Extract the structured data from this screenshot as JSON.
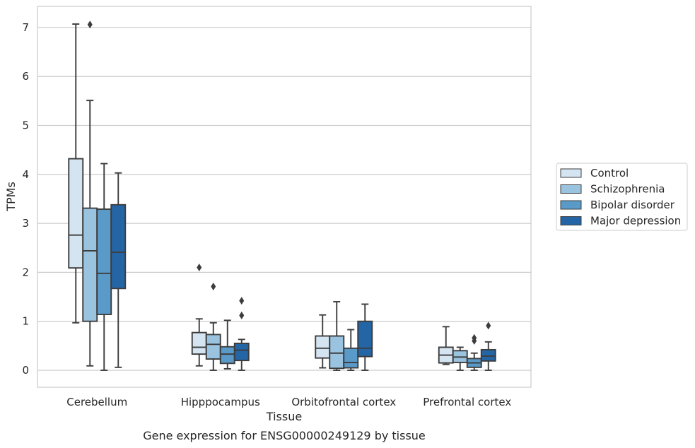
{
  "chart_data": {
    "type": "box",
    "xlabel": "Tissue",
    "ylabel": "TPMs",
    "caption": "Gene expression for ENSG00000249129 by tissue",
    "ylim": [
      -0.35,
      7.45
    ],
    "yticks": [
      0,
      1,
      2,
      3,
      4,
      5,
      6,
      7
    ],
    "grid": "horizontal",
    "legend_position": "right",
    "categories": [
      "Cerebellum",
      "Hipppocampus",
      "Orbitofrontal cortex",
      "Prefrontal cortex"
    ],
    "series": [
      {
        "name": "Control",
        "color": "#d5e4f1",
        "boxes": [
          {
            "q1": 2.09,
            "median": 2.76,
            "q3": 4.32,
            "whislo": 0.97,
            "whishi": 7.07,
            "fliers": []
          },
          {
            "q1": 0.33,
            "median": 0.47,
            "q3": 0.77,
            "whislo": 0.09,
            "whishi": 1.05,
            "fliers": [
              2.1
            ]
          },
          {
            "q1": 0.25,
            "median": 0.45,
            "q3": 0.7,
            "whislo": 0.05,
            "whishi": 1.13,
            "fliers": []
          },
          {
            "q1": 0.15,
            "median": 0.31,
            "q3": 0.47,
            "whislo": 0.12,
            "whishi": 0.89,
            "fliers": []
          }
        ]
      },
      {
        "name": "Schizophrenia",
        "color": "#9ac3df",
        "boxes": [
          {
            "q1": 1.0,
            "median": 2.44,
            "q3": 3.31,
            "whislo": 0.09,
            "whishi": 5.51,
            "fliers": [
              7.06
            ]
          },
          {
            "q1": 0.23,
            "median": 0.53,
            "q3": 0.73,
            "whislo": 0.0,
            "whishi": 0.97,
            "fliers": [
              1.71
            ]
          },
          {
            "q1": 0.04,
            "median": 0.35,
            "q3": 0.7,
            "whislo": 0.0,
            "whishi": 1.4,
            "fliers": []
          },
          {
            "q1": 0.16,
            "median": 0.27,
            "q3": 0.4,
            "whislo": 0.0,
            "whishi": 0.47,
            "fliers": []
          }
        ]
      },
      {
        "name": "Bipolar disorder",
        "color": "#5a9ac9",
        "boxes": [
          {
            "q1": 1.14,
            "median": 1.98,
            "q3": 3.29,
            "whislo": 0.0,
            "whishi": 4.22,
            "fliers": []
          },
          {
            "q1": 0.14,
            "median": 0.33,
            "q3": 0.48,
            "whislo": 0.03,
            "whishi": 1.02,
            "fliers": []
          },
          {
            "q1": 0.05,
            "median": 0.16,
            "q3": 0.45,
            "whislo": 0.0,
            "whishi": 0.83,
            "fliers": []
          },
          {
            "q1": 0.06,
            "median": 0.15,
            "q3": 0.24,
            "whislo": 0.0,
            "whishi": 0.35,
            "fliers": [
              0.6,
              0.66
            ]
          }
        ]
      },
      {
        "name": "Major depression",
        "color": "#2465a6",
        "boxes": [
          {
            "q1": 1.67,
            "median": 2.41,
            "q3": 3.38,
            "whislo": 0.06,
            "whishi": 4.03,
            "fliers": []
          },
          {
            "q1": 0.2,
            "median": 0.41,
            "q3": 0.55,
            "whislo": 0.0,
            "whishi": 0.63,
            "fliers": [
              1.12,
              1.42
            ]
          },
          {
            "q1": 0.28,
            "median": 0.45,
            "q3": 1.0,
            "whislo": 0.0,
            "whishi": 1.35,
            "fliers": []
          },
          {
            "q1": 0.19,
            "median": 0.29,
            "q3": 0.42,
            "whislo": 0.0,
            "whishi": 0.58,
            "fliers": [
              0.91
            ]
          }
        ]
      }
    ]
  }
}
